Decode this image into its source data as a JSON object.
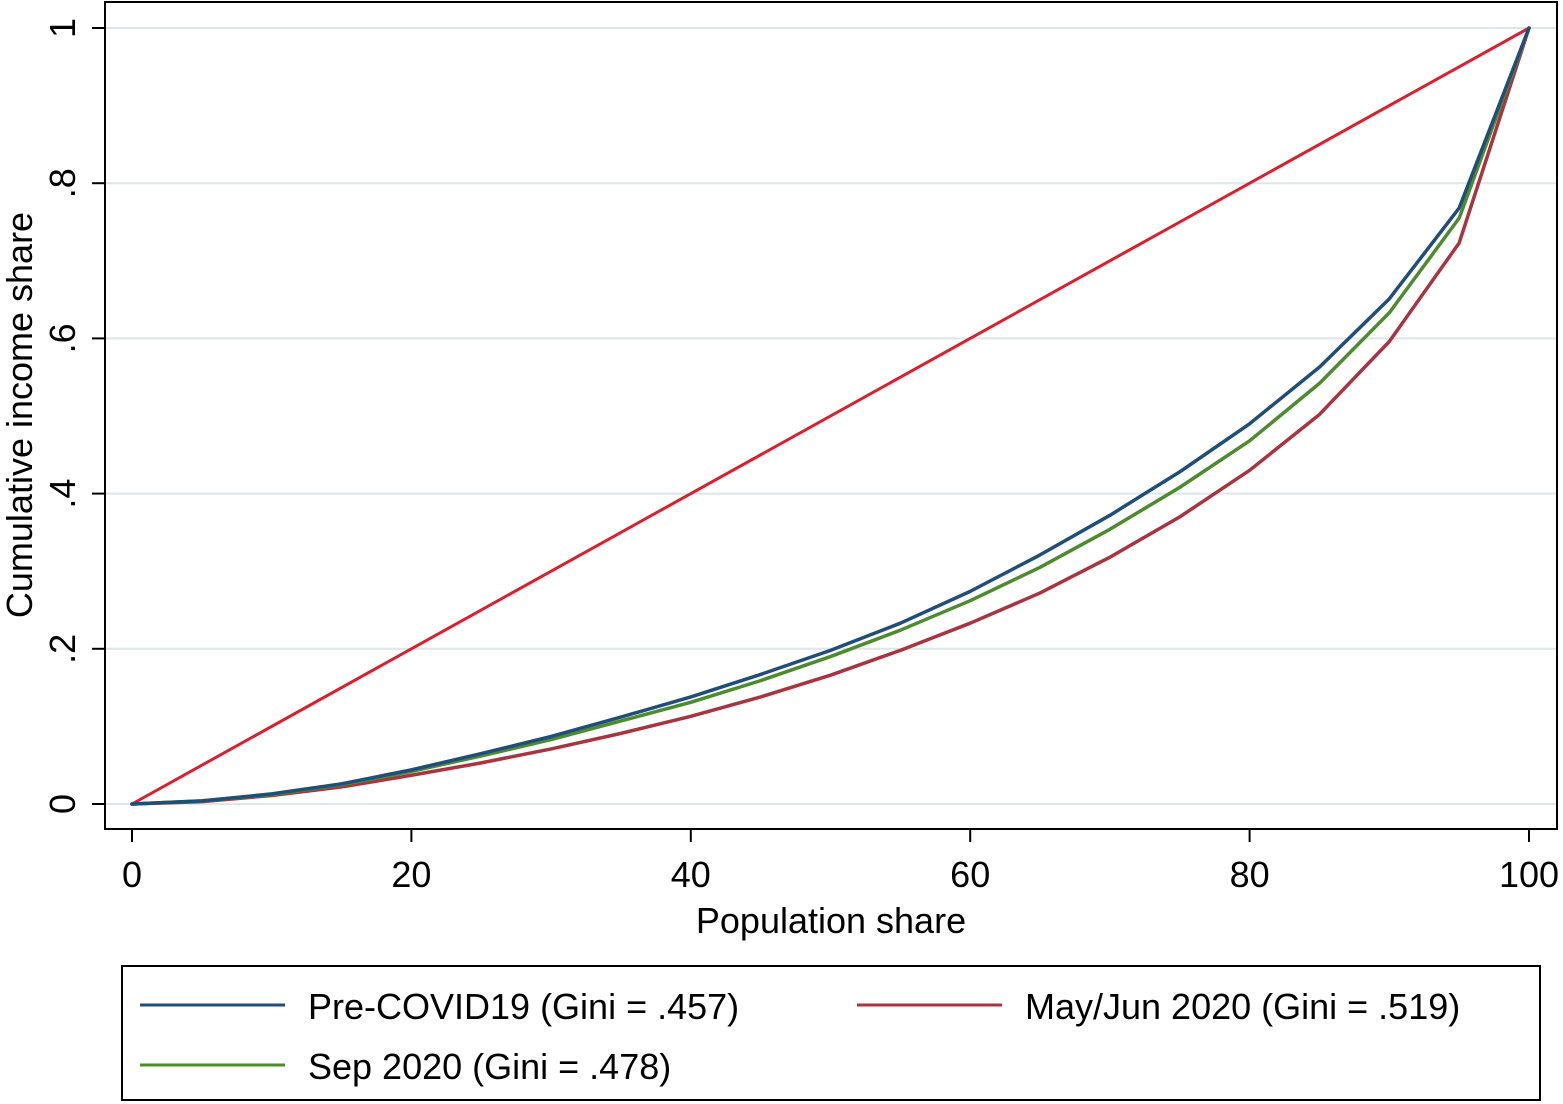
{
  "chart_data": {
    "type": "line",
    "title": "",
    "xlabel": "Population share",
    "ylabel": "Cumulative income share",
    "xlim": [
      0,
      100
    ],
    "ylim": [
      0,
      1
    ],
    "x_ticks": [
      0,
      20,
      40,
      60,
      80,
      100
    ],
    "x_tick_labels": [
      "0",
      "20",
      "40",
      "60",
      "80",
      "100"
    ],
    "y_ticks": [
      0,
      0.2,
      0.4,
      0.6,
      0.8,
      1
    ],
    "y_tick_labels": [
      "0",
      ".2",
      ".4",
      ".6",
      ".8",
      "1"
    ],
    "grid": "horizontal",
    "legend_position": "bottom",
    "x": [
      0,
      5,
      10,
      15,
      20,
      25,
      30,
      35,
      40,
      45,
      50,
      55,
      60,
      65,
      70,
      75,
      80,
      85,
      90,
      95,
      100
    ],
    "series": [
      {
        "name": "Pre-COVID19 (Gini = .457)",
        "color": "#1f4e79",
        "values": [
          0,
          0.004,
          0.013,
          0.026,
          0.044,
          0.065,
          0.087,
          0.112,
          0.138,
          0.167,
          0.198,
          0.233,
          0.274,
          0.321,
          0.372,
          0.428,
          0.49,
          0.563,
          0.651,
          0.768,
          1.0
        ]
      },
      {
        "name": "May/Jun 2020 (Gini = .519)",
        "color": "#a8343f",
        "values": [
          0,
          0.003,
          0.011,
          0.022,
          0.037,
          0.053,
          0.071,
          0.091,
          0.113,
          0.138,
          0.166,
          0.198,
          0.233,
          0.272,
          0.318,
          0.37,
          0.43,
          0.502,
          0.596,
          0.723,
          1.0
        ]
      },
      {
        "name": "Sep 2020 (Gini = .478)",
        "color": "#4e8a2e",
        "values": [
          0,
          0.004,
          0.012,
          0.025,
          0.042,
          0.062,
          0.083,
          0.107,
          0.131,
          0.159,
          0.19,
          0.224,
          0.262,
          0.305,
          0.354,
          0.408,
          0.468,
          0.542,
          0.633,
          0.755,
          1.0
        ]
      }
    ],
    "equality_line": {
      "color": "#d8202e",
      "x": [
        0,
        100
      ],
      "values": [
        0,
        1
      ]
    }
  },
  "legend": {
    "items": [
      {
        "label": "Pre-COVID19 (Gini = .457)",
        "color": "#1f4e79"
      },
      {
        "label": "May/Jun 2020 (Gini = .519)",
        "color": "#a8343f"
      },
      {
        "label": "Sep 2020 (Gini = .478)",
        "color": "#4e8a2e"
      }
    ]
  }
}
